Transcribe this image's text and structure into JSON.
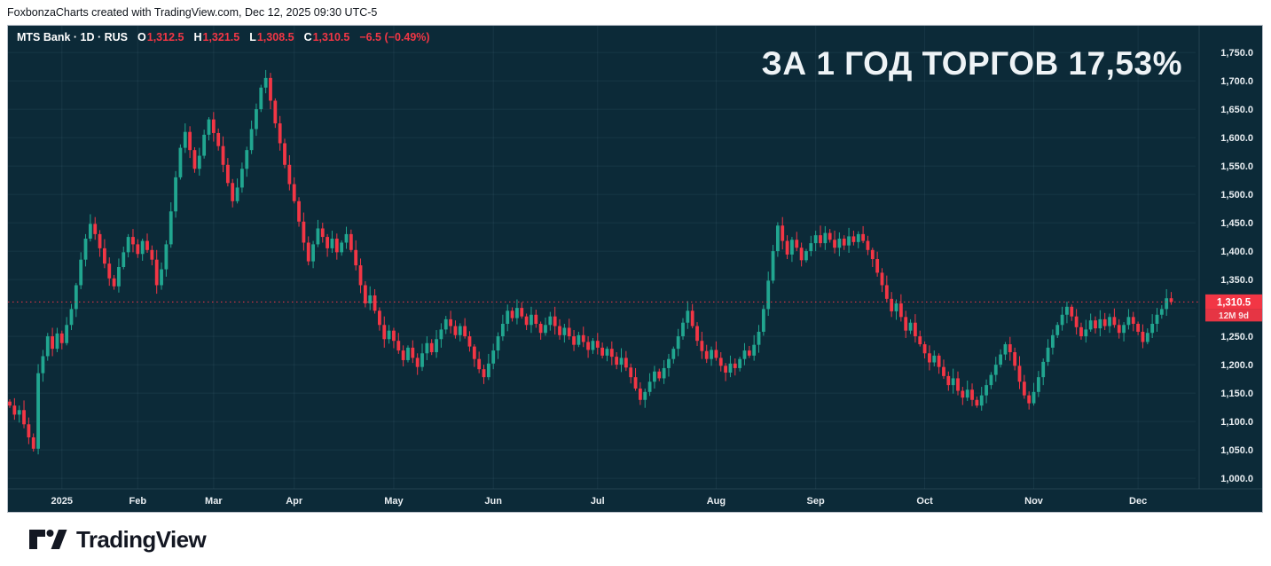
{
  "attribution": "FoxbonzaCharts created with TradingView.com, Dec 12, 2025 09:30 UTC-5",
  "watermark_title": "ЗА 1 ГОД ТОРГОВ 17,53%",
  "symbol_header": {
    "title": "MTS Bank · 1D · RUS",
    "open_label": "O",
    "open": "1,312.5",
    "high_label": "H",
    "high": "1,321.5",
    "low_label": "L",
    "low": "1,308.5",
    "close_label": "C",
    "close": "1,310.5",
    "change": "−6.5 (−0.49%)"
  },
  "price_scale": {
    "last_price_label": "1,310.5",
    "countdown_label": "12M 9d",
    "ticks": [
      {
        "v": 1750,
        "label": "1,750.0"
      },
      {
        "v": 1700,
        "label": "1,700.0"
      },
      {
        "v": 1650,
        "label": "1,650.0"
      },
      {
        "v": 1600,
        "label": "1,600.0"
      },
      {
        "v": 1550,
        "label": "1,550.0"
      },
      {
        "v": 1500,
        "label": "1,500.0"
      },
      {
        "v": 1450,
        "label": "1,450.0"
      },
      {
        "v": 1400,
        "label": "1,400.0"
      },
      {
        "v": 1350,
        "label": "1,350.0"
      },
      {
        "v": 1250,
        "label": "1,250.0"
      },
      {
        "v": 1200,
        "label": "1,200.0"
      },
      {
        "v": 1150,
        "label": "1,150.0"
      },
      {
        "v": 1100,
        "label": "1,100.0"
      },
      {
        "v": 1050,
        "label": "1,050.0"
      },
      {
        "v": 1000,
        "label": "1,000.0"
      }
    ],
    "gridline_values": [
      1750,
      1700,
      1650,
      1600,
      1550,
      1500,
      1450,
      1400,
      1350,
      1300,
      1250,
      1200,
      1150,
      1100,
      1050,
      1000
    ]
  },
  "branding": {
    "logo_text": "TradingView"
  },
  "chart_data": {
    "type": "candlestick",
    "symbol": "MTS Bank",
    "timeframe": "1D",
    "market": "RUS",
    "title": "ЗА 1 ГОД ТОРГОВ 17,53%",
    "ylim": [
      1000,
      1750
    ],
    "grid": true,
    "last_price": 1310.5,
    "price_line": {
      "value": 1310.5,
      "style": "dotted",
      "color": "#f23645"
    },
    "x_ticks": [
      {
        "label": "2025",
        "day": 11
      },
      {
        "label": "Feb",
        "day": 27
      },
      {
        "label": "Mar",
        "day": 43
      },
      {
        "label": "Apr",
        "day": 60
      },
      {
        "label": "May",
        "day": 81
      },
      {
        "label": "Jun",
        "day": 102
      },
      {
        "label": "Jul",
        "day": 124
      },
      {
        "label": "Aug",
        "day": 149
      },
      {
        "label": "Sep",
        "day": 170
      },
      {
        "label": "Oct",
        "day": 193
      },
      {
        "label": "Nov",
        "day": 216
      },
      {
        "label": "Dec",
        "day": 238
      }
    ],
    "first_open": 1135,
    "closes": [
      1128,
      1112,
      1120,
      1095,
      1072,
      1052,
      1185,
      1215,
      1250,
      1228,
      1255,
      1238,
      1270,
      1298,
      1340,
      1385,
      1422,
      1448,
      1430,
      1405,
      1378,
      1352,
      1338,
      1372,
      1398,
      1425,
      1412,
      1395,
      1418,
      1402,
      1385,
      1340,
      1368,
      1412,
      1470,
      1530,
      1582,
      1610,
      1578,
      1545,
      1568,
      1605,
      1632,
      1608,
      1585,
      1552,
      1520,
      1488,
      1512,
      1545,
      1578,
      1615,
      1650,
      1688,
      1705,
      1665,
      1625,
      1590,
      1552,
      1518,
      1488,
      1452,
      1415,
      1382,
      1412,
      1440,
      1425,
      1405,
      1422,
      1398,
      1415,
      1430,
      1402,
      1375,
      1340,
      1308,
      1322,
      1295,
      1270,
      1245,
      1260,
      1242,
      1225,
      1208,
      1230,
      1212,
      1196,
      1220,
      1238,
      1222,
      1245,
      1262,
      1280,
      1268,
      1252,
      1268,
      1250,
      1232,
      1210,
      1192,
      1178,
      1202,
      1225,
      1250,
      1272,
      1295,
      1282,
      1300,
      1285,
      1270,
      1288,
      1272,
      1256,
      1270,
      1285,
      1268,
      1252,
      1265,
      1250,
      1235,
      1252,
      1240,
      1226,
      1242,
      1230,
      1216,
      1228,
      1214,
      1200,
      1212,
      1195,
      1178,
      1158,
      1138,
      1152,
      1170,
      1188,
      1176,
      1194,
      1210,
      1228,
      1250,
      1274,
      1295,
      1268,
      1242,
      1224,
      1210,
      1226,
      1212,
      1198,
      1186,
      1202,
      1194,
      1210,
      1225,
      1216,
      1235,
      1258,
      1298,
      1348,
      1400,
      1445,
      1418,
      1394,
      1420,
      1406,
      1384,
      1400,
      1414,
      1428,
      1414,
      1432,
      1420,
      1406,
      1422,
      1410,
      1426,
      1416,
      1430,
      1418,
      1402,
      1386,
      1362,
      1340,
      1316,
      1294,
      1308,
      1284,
      1260,
      1274,
      1250,
      1236,
      1220,
      1204,
      1216,
      1196,
      1180,
      1164,
      1176,
      1154,
      1142,
      1156,
      1138,
      1128,
      1146,
      1164,
      1182,
      1200,
      1218,
      1236,
      1222,
      1198,
      1170,
      1146,
      1132,
      1152,
      1178,
      1205,
      1230,
      1252,
      1270,
      1288,
      1302,
      1285,
      1266,
      1250,
      1262,
      1278,
      1264,
      1280,
      1268,
      1284,
      1270,
      1256,
      1270,
      1284,
      1272,
      1258,
      1240,
      1256,
      1272,
      1288,
      1298,
      1317,
      1310.5
    ],
    "colors": {
      "up": "#21a690",
      "down": "#f23645",
      "background": "#0c2a38"
    }
  }
}
